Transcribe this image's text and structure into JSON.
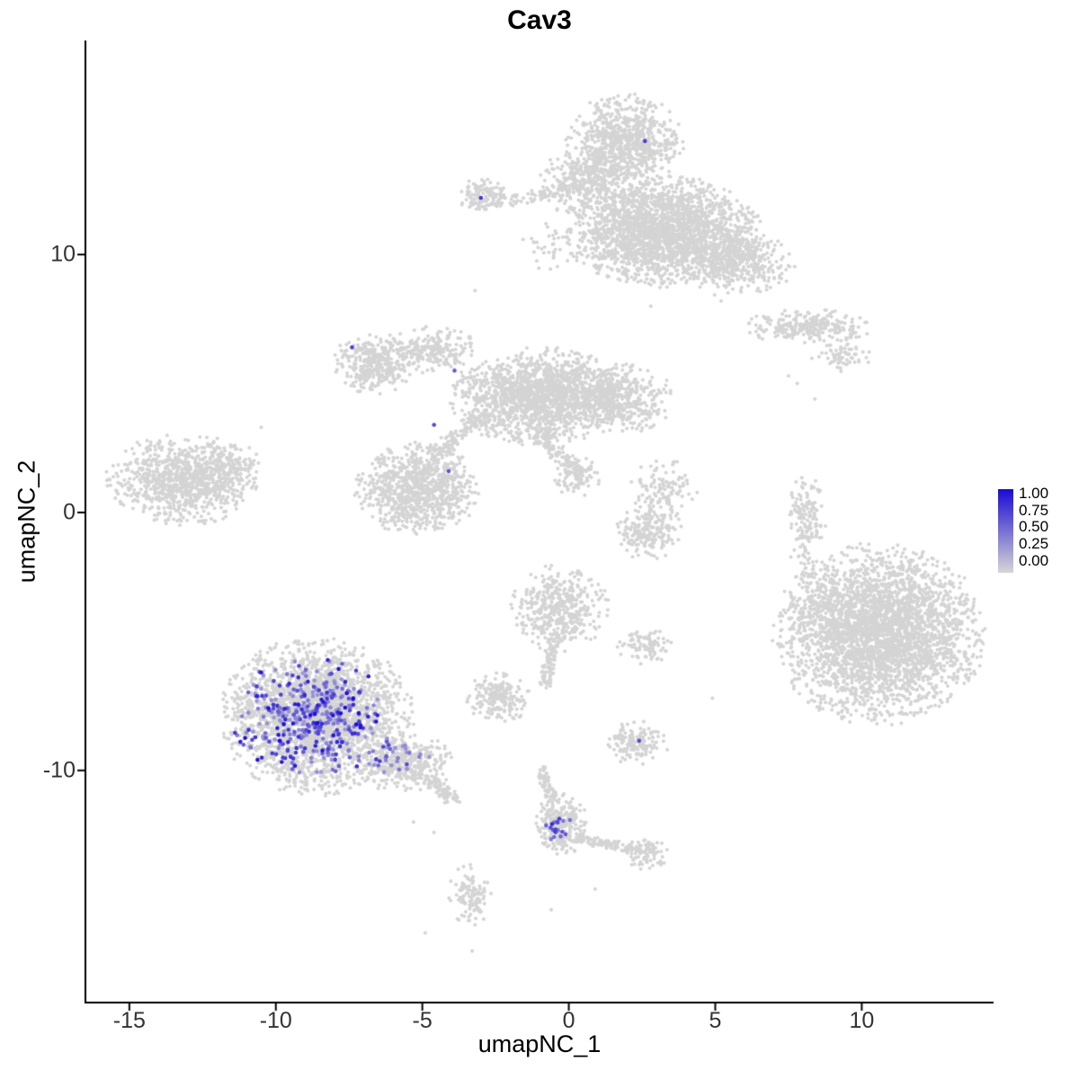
{
  "chart_data": {
    "type": "scatter",
    "title": "Cav3",
    "xlabel": "umapNC_1",
    "ylabel": "umapNC_2",
    "xlim": [
      -16.5,
      14.5
    ],
    "ylim": [
      -19.0,
      18.3
    ],
    "x_ticks": [
      -15,
      -10,
      -5,
      0,
      5,
      10
    ],
    "y_ticks": [
      -10,
      0,
      10
    ],
    "grid": false,
    "legend": {
      "position": "right",
      "labels": [
        "1.00",
        "0.75",
        "0.50",
        "0.25",
        "0.00"
      ],
      "low_color": "#D6D6D6",
      "high_color": "#1A0BD3"
    },
    "point": {
      "radius_px": 2.0,
      "expressing_radius_px": 2.3,
      "base_color": "#D4D4D4"
    },
    "seed": 42,
    "background_clusters": [
      {
        "name": "top-knob",
        "shape": "gauss",
        "n": 800,
        "cx": 1.9,
        "cy": 14.3,
        "sx": 0.9,
        "sy": 0.85
      },
      {
        "name": "top-bridge",
        "shape": "gauss",
        "n": 350,
        "cx": 0.6,
        "cy": 12.8,
        "sx": 0.7,
        "sy": 0.6
      },
      {
        "name": "upper-right-mass",
        "shape": "gauss",
        "n": 2200,
        "cx": 3.2,
        "cy": 10.9,
        "sx": 1.5,
        "sy": 0.95
      },
      {
        "name": "upper-right-arm",
        "shape": "gauss",
        "n": 450,
        "cx": 5.7,
        "cy": 9.7,
        "sx": 0.9,
        "sy": 0.6
      },
      {
        "name": "upper-small-islet",
        "shape": "gauss",
        "n": 120,
        "cx": -2.9,
        "cy": 12.3,
        "sx": 0.4,
        "sy": 0.33
      },
      {
        "name": "upper-trail",
        "shape": "line",
        "n": 70,
        "x1": -2.3,
        "y1": 12.0,
        "x2": 0.2,
        "y2": 12.6,
        "jitter": 0.25
      },
      {
        "name": "below-top-sparse",
        "shape": "gauss",
        "n": 40,
        "cx": -0.6,
        "cy": 10.3,
        "sx": 0.5,
        "sy": 0.4
      },
      {
        "name": "right-thin-cluster",
        "shape": "gauss",
        "n": 260,
        "cx": 8.2,
        "cy": 7.2,
        "sx": 1.0,
        "sy": 0.3
      },
      {
        "name": "right-thin-blob",
        "shape": "gauss",
        "n": 70,
        "cx": 9.3,
        "cy": 6.1,
        "sx": 0.45,
        "sy": 0.3
      },
      {
        "name": "mid-left-blob",
        "shape": "gauss",
        "n": 350,
        "cx": -6.6,
        "cy": 5.8,
        "sx": 0.65,
        "sy": 0.55
      },
      {
        "name": "mid-left-arm",
        "shape": "gauss",
        "n": 220,
        "cx": -4.7,
        "cy": 6.3,
        "sx": 0.75,
        "sy": 0.4
      },
      {
        "name": "central-mass",
        "shape": "gauss",
        "n": 1600,
        "cx": -1.0,
        "cy": 4.5,
        "sx": 1.35,
        "sy": 0.85
      },
      {
        "name": "central-east-blob",
        "shape": "gauss",
        "n": 500,
        "cx": 1.6,
        "cy": 4.4,
        "sx": 0.9,
        "sy": 0.6
      },
      {
        "name": "south-central-blob",
        "shape": "gauss",
        "n": 900,
        "cx": -5.2,
        "cy": 0.9,
        "sx": 0.95,
        "sy": 0.8
      },
      {
        "name": "diagonal-trail",
        "shape": "line",
        "n": 140,
        "x1": -4.6,
        "y1": 2.2,
        "x2": -2.8,
        "y2": 3.9,
        "jitter": 0.3
      },
      {
        "name": "southeast-trail",
        "shape": "line",
        "n": 110,
        "x1": -1.2,
        "y1": 3.2,
        "x2": 0.3,
        "y2": 1.6,
        "jitter": 0.3
      },
      {
        "name": "southeast-end-blob",
        "shape": "gauss",
        "n": 90,
        "cx": 0.3,
        "cy": 1.4,
        "sx": 0.4,
        "sy": 0.35
      },
      {
        "name": "far-left-cluster",
        "shape": "gauss",
        "n": 950,
        "cx": -13.2,
        "cy": 1.3,
        "sx": 1.15,
        "sy": 0.8
      },
      {
        "name": "far-left-tip",
        "shape": "gauss",
        "n": 120,
        "cx": -11.6,
        "cy": 1.8,
        "sx": 0.5,
        "sy": 0.4
      },
      {
        "name": "mid-right-sparse",
        "shape": "gauss",
        "n": 120,
        "cx": 3.2,
        "cy": 0.9,
        "sx": 0.55,
        "sy": 0.6
      },
      {
        "name": "mid-right-blob",
        "shape": "gauss",
        "n": 200,
        "cx": 2.7,
        "cy": -0.7,
        "sx": 0.5,
        "sy": 0.5
      },
      {
        "name": "right-vertical-strip",
        "shape": "gauss",
        "n": 160,
        "cx": 8.1,
        "cy": -0.4,
        "sx": 0.3,
        "sy": 0.95
      },
      {
        "name": "big-right-cluster",
        "shape": "gauss",
        "n": 3200,
        "cx": 10.6,
        "cy": -4.7,
        "sx": 1.6,
        "sy": 1.55
      },
      {
        "name": "big-right-left-scatter",
        "shape": "gauss",
        "n": 80,
        "cx": 8.6,
        "cy": -3.3,
        "sx": 0.6,
        "sy": 0.8
      },
      {
        "name": "center-blob",
        "shape": "gauss",
        "n": 450,
        "cx": -0.3,
        "cy": -3.7,
        "sx": 0.75,
        "sy": 0.75
      },
      {
        "name": "center-tail",
        "shape": "line",
        "n": 90,
        "x1": -0.5,
        "y1": -4.9,
        "x2": -0.8,
        "y2": -6.7,
        "jitter": 0.2
      },
      {
        "name": "center-left-blob",
        "shape": "gauss",
        "n": 200,
        "cx": -2.4,
        "cy": -7.2,
        "sx": 0.5,
        "sy": 0.45
      },
      {
        "name": "center-small-east",
        "shape": "gauss",
        "n": 90,
        "cx": 2.6,
        "cy": -5.2,
        "sx": 0.45,
        "sy": 0.3
      },
      {
        "name": "bottomleft-main",
        "shape": "gauss",
        "n": 2600,
        "cx": -8.6,
        "cy": -7.9,
        "sx": 1.45,
        "sy": 1.35
      },
      {
        "name": "bottomleft-tail",
        "shape": "gauss",
        "n": 350,
        "cx": -5.6,
        "cy": -9.7,
        "sx": 0.8,
        "sy": 0.5
      },
      {
        "name": "bottomleft-trail",
        "shape": "line",
        "n": 80,
        "x1": -4.8,
        "y1": -10.3,
        "x2": -3.9,
        "y2": -11.2,
        "jitter": 0.25
      },
      {
        "name": "small-east-blob",
        "shape": "gauss",
        "n": 150,
        "cx": 2.3,
        "cy": -8.9,
        "sx": 0.5,
        "sy": 0.38
      },
      {
        "name": "bottom-trail",
        "shape": "line",
        "n": 70,
        "x1": -1.0,
        "y1": -9.9,
        "x2": -0.5,
        "y2": -11.2,
        "jitter": 0.18
      },
      {
        "name": "bottom-cluster",
        "shape": "gauss",
        "n": 260,
        "cx": -0.3,
        "cy": -12.1,
        "sx": 0.42,
        "sy": 0.55
      },
      {
        "name": "bottom-right-trail",
        "shape": "line",
        "n": 110,
        "x1": 0.2,
        "y1": -12.6,
        "x2": 2.4,
        "y2": -13.1,
        "jitter": 0.2
      },
      {
        "name": "bottom-right-blob",
        "shape": "gauss",
        "n": 80,
        "cx": 2.6,
        "cy": -13.2,
        "sx": 0.4,
        "sy": 0.3
      },
      {
        "name": "bottom-small-cluster",
        "shape": "gauss",
        "n": 110,
        "cx": -3.4,
        "cy": -14.9,
        "sx": 0.33,
        "sy": 0.55
      }
    ],
    "background_singles": [
      [
        -10.5,
        3.3
      ],
      [
        -3.2,
        8.6
      ],
      [
        5.2,
        8.2
      ],
      [
        2.8,
        8.0
      ],
      [
        4.9,
        -7.2
      ],
      [
        -4.9,
        -16.3
      ],
      [
        -3.3,
        -17.0
      ],
      [
        -0.6,
        -15.4
      ],
      [
        7.5,
        5.3
      ],
      [
        7.8,
        5.0
      ],
      [
        8.4,
        4.4
      ],
      [
        0.9,
        -14.6
      ],
      [
        -5.3,
        -12.0
      ],
      [
        -4.6,
        -12.4
      ]
    ],
    "expressing_clusters": [
      {
        "name": "cav3-main-cluster",
        "n": 390,
        "cx": -8.7,
        "cy": -8.0,
        "sx": 1.25,
        "sy": 1.05,
        "vmin": 0.3,
        "vmax": 1.0
      },
      {
        "name": "cav3-main-tail",
        "n": 30,
        "cx": -5.8,
        "cy": -9.6,
        "sx": 0.55,
        "sy": 0.35,
        "vmin": 0.3,
        "vmax": 0.8
      },
      {
        "name": "cav3-bottom-cluster",
        "n": 18,
        "cx": -0.35,
        "cy": -12.2,
        "sx": 0.22,
        "sy": 0.3,
        "vmin": 0.45,
        "vmax": 0.85
      }
    ],
    "expressing_singles": [
      {
        "x": 2.6,
        "y": 14.4,
        "v": 0.75
      },
      {
        "x": -3.0,
        "y": 12.2,
        "v": 0.8
      },
      {
        "x": -7.4,
        "y": 6.4,
        "v": 0.75
      },
      {
        "x": -3.9,
        "y": 5.5,
        "v": 0.6
      },
      {
        "x": -4.6,
        "y": 3.4,
        "v": 0.7
      },
      {
        "x": -4.1,
        "y": 1.6,
        "v": 0.65
      },
      {
        "x": 2.4,
        "y": -8.85,
        "v": 0.7
      }
    ]
  }
}
